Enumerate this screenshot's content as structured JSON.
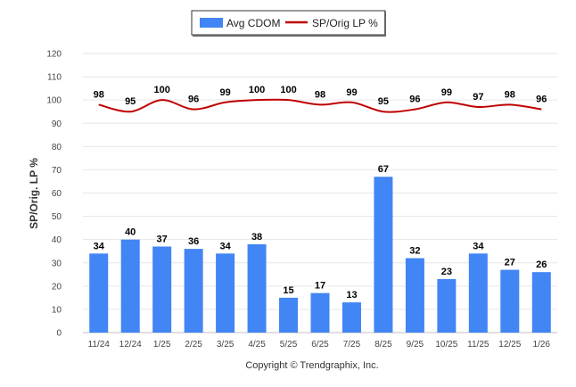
{
  "chart_data": {
    "type": "bar",
    "categories": [
      "11/24",
      "12/24",
      "1/25",
      "2/25",
      "3/25",
      "4/25",
      "5/25",
      "6/25",
      "7/25",
      "8/25",
      "9/25",
      "10/25",
      "11/25",
      "12/25",
      "1/26"
    ],
    "series": [
      {
        "name": "Avg CDOM",
        "type": "bar",
        "color": "#4285f4",
        "values": [
          34,
          40,
          37,
          36,
          34,
          38,
          15,
          17,
          13,
          67,
          32,
          23,
          34,
          27,
          26
        ]
      },
      {
        "name": "SP/Orig LP %",
        "type": "line",
        "color": "#c00000",
        "values": [
          98,
          95,
          100,
          96,
          99,
          100,
          100,
          98,
          99,
          95,
          96,
          99,
          97,
          98,
          96
        ]
      }
    ],
    "ylabel": "SP/Orig. LP %",
    "yticks": [
      0,
      10,
      20,
      30,
      40,
      50,
      60,
      70,
      80,
      90,
      100,
      110,
      120
    ],
    "ylim": [
      0,
      120
    ],
    "grid": true,
    "legend_position": "top-center"
  },
  "footer": {
    "copyright": "Copyright © Trendgraphix, Inc."
  }
}
